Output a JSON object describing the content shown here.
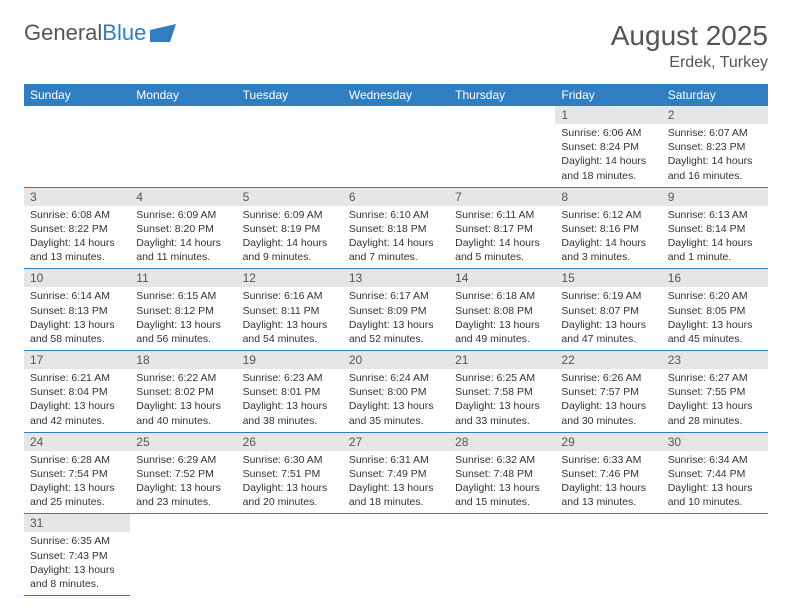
{
  "logo": {
    "text1": "General",
    "text2": "Blue"
  },
  "title": "August 2025",
  "location": "Erdek, Turkey",
  "colors": {
    "header_bg": "#2f7ec2",
    "daynum_bg": "#e6e6e6",
    "border": "#2f7ec2"
  },
  "daysOfWeek": [
    "Sunday",
    "Monday",
    "Tuesday",
    "Wednesday",
    "Thursday",
    "Friday",
    "Saturday"
  ],
  "weeks": [
    [
      null,
      null,
      null,
      null,
      null,
      {
        "n": "1",
        "sr": "Sunrise: 6:06 AM",
        "ss": "Sunset: 8:24 PM",
        "dl": "Daylight: 14 hours and 18 minutes."
      },
      {
        "n": "2",
        "sr": "Sunrise: 6:07 AM",
        "ss": "Sunset: 8:23 PM",
        "dl": "Daylight: 14 hours and 16 minutes."
      }
    ],
    [
      {
        "n": "3",
        "sr": "Sunrise: 6:08 AM",
        "ss": "Sunset: 8:22 PM",
        "dl": "Daylight: 14 hours and 13 minutes."
      },
      {
        "n": "4",
        "sr": "Sunrise: 6:09 AM",
        "ss": "Sunset: 8:20 PM",
        "dl": "Daylight: 14 hours and 11 minutes."
      },
      {
        "n": "5",
        "sr": "Sunrise: 6:09 AM",
        "ss": "Sunset: 8:19 PM",
        "dl": "Daylight: 14 hours and 9 minutes."
      },
      {
        "n": "6",
        "sr": "Sunrise: 6:10 AM",
        "ss": "Sunset: 8:18 PM",
        "dl": "Daylight: 14 hours and 7 minutes."
      },
      {
        "n": "7",
        "sr": "Sunrise: 6:11 AM",
        "ss": "Sunset: 8:17 PM",
        "dl": "Daylight: 14 hours and 5 minutes."
      },
      {
        "n": "8",
        "sr": "Sunrise: 6:12 AM",
        "ss": "Sunset: 8:16 PM",
        "dl": "Daylight: 14 hours and 3 minutes."
      },
      {
        "n": "9",
        "sr": "Sunrise: 6:13 AM",
        "ss": "Sunset: 8:14 PM",
        "dl": "Daylight: 14 hours and 1 minute."
      }
    ],
    [
      {
        "n": "10",
        "sr": "Sunrise: 6:14 AM",
        "ss": "Sunset: 8:13 PM",
        "dl": "Daylight: 13 hours and 58 minutes."
      },
      {
        "n": "11",
        "sr": "Sunrise: 6:15 AM",
        "ss": "Sunset: 8:12 PM",
        "dl": "Daylight: 13 hours and 56 minutes."
      },
      {
        "n": "12",
        "sr": "Sunrise: 6:16 AM",
        "ss": "Sunset: 8:11 PM",
        "dl": "Daylight: 13 hours and 54 minutes."
      },
      {
        "n": "13",
        "sr": "Sunrise: 6:17 AM",
        "ss": "Sunset: 8:09 PM",
        "dl": "Daylight: 13 hours and 52 minutes."
      },
      {
        "n": "14",
        "sr": "Sunrise: 6:18 AM",
        "ss": "Sunset: 8:08 PM",
        "dl": "Daylight: 13 hours and 49 minutes."
      },
      {
        "n": "15",
        "sr": "Sunrise: 6:19 AM",
        "ss": "Sunset: 8:07 PM",
        "dl": "Daylight: 13 hours and 47 minutes."
      },
      {
        "n": "16",
        "sr": "Sunrise: 6:20 AM",
        "ss": "Sunset: 8:05 PM",
        "dl": "Daylight: 13 hours and 45 minutes."
      }
    ],
    [
      {
        "n": "17",
        "sr": "Sunrise: 6:21 AM",
        "ss": "Sunset: 8:04 PM",
        "dl": "Daylight: 13 hours and 42 minutes."
      },
      {
        "n": "18",
        "sr": "Sunrise: 6:22 AM",
        "ss": "Sunset: 8:02 PM",
        "dl": "Daylight: 13 hours and 40 minutes."
      },
      {
        "n": "19",
        "sr": "Sunrise: 6:23 AM",
        "ss": "Sunset: 8:01 PM",
        "dl": "Daylight: 13 hours and 38 minutes."
      },
      {
        "n": "20",
        "sr": "Sunrise: 6:24 AM",
        "ss": "Sunset: 8:00 PM",
        "dl": "Daylight: 13 hours and 35 minutes."
      },
      {
        "n": "21",
        "sr": "Sunrise: 6:25 AM",
        "ss": "Sunset: 7:58 PM",
        "dl": "Daylight: 13 hours and 33 minutes."
      },
      {
        "n": "22",
        "sr": "Sunrise: 6:26 AM",
        "ss": "Sunset: 7:57 PM",
        "dl": "Daylight: 13 hours and 30 minutes."
      },
      {
        "n": "23",
        "sr": "Sunrise: 6:27 AM",
        "ss": "Sunset: 7:55 PM",
        "dl": "Daylight: 13 hours and 28 minutes."
      }
    ],
    [
      {
        "n": "24",
        "sr": "Sunrise: 6:28 AM",
        "ss": "Sunset: 7:54 PM",
        "dl": "Daylight: 13 hours and 25 minutes."
      },
      {
        "n": "25",
        "sr": "Sunrise: 6:29 AM",
        "ss": "Sunset: 7:52 PM",
        "dl": "Daylight: 13 hours and 23 minutes."
      },
      {
        "n": "26",
        "sr": "Sunrise: 6:30 AM",
        "ss": "Sunset: 7:51 PM",
        "dl": "Daylight: 13 hours and 20 minutes."
      },
      {
        "n": "27",
        "sr": "Sunrise: 6:31 AM",
        "ss": "Sunset: 7:49 PM",
        "dl": "Daylight: 13 hours and 18 minutes."
      },
      {
        "n": "28",
        "sr": "Sunrise: 6:32 AM",
        "ss": "Sunset: 7:48 PM",
        "dl": "Daylight: 13 hours and 15 minutes."
      },
      {
        "n": "29",
        "sr": "Sunrise: 6:33 AM",
        "ss": "Sunset: 7:46 PM",
        "dl": "Daylight: 13 hours and 13 minutes."
      },
      {
        "n": "30",
        "sr": "Sunrise: 6:34 AM",
        "ss": "Sunset: 7:44 PM",
        "dl": "Daylight: 13 hours and 10 minutes."
      }
    ],
    [
      {
        "n": "31",
        "sr": "Sunrise: 6:35 AM",
        "ss": "Sunset: 7:43 PM",
        "dl": "Daylight: 13 hours and 8 minutes."
      },
      null,
      null,
      null,
      null,
      null,
      null
    ]
  ]
}
